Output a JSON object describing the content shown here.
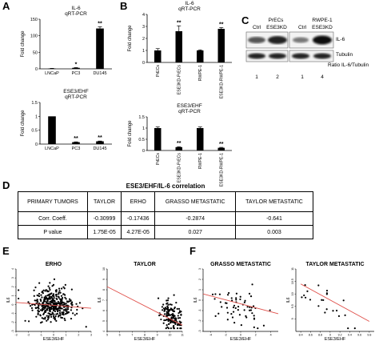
{
  "panels": {
    "A": "A",
    "B": "B",
    "C": "C",
    "D": "D",
    "E": "E",
    "F": "F"
  },
  "chart_data": [
    {
      "id": "a_top",
      "type": "bar",
      "title": "IL-6",
      "subtitle": "qRT-PCR",
      "ylabel": "Fold change",
      "categories": [
        "LNCaP",
        "PC3",
        "DU145"
      ],
      "values": [
        1,
        3,
        122
      ],
      "errors": [
        0.5,
        1,
        5
      ],
      "ylim": [
        0,
        150
      ],
      "yticks": [
        0,
        50,
        100,
        150
      ],
      "signif": [
        "",
        "*",
        "**"
      ]
    },
    {
      "id": "a_bottom",
      "type": "bar",
      "title": "ESE3/EHF",
      "subtitle": "qRT-PCR",
      "ylabel": "Fold change",
      "categories": [
        "LNCaP",
        "PC3",
        "DU145"
      ],
      "values": [
        1.0,
        0.07,
        0.1
      ],
      "errors": [
        0,
        0.01,
        0.01
      ],
      "ylim": [
        0,
        1.5
      ],
      "yticks": [
        0,
        0.5,
        1,
        1.5
      ],
      "signif": [
        "",
        "**",
        "**"
      ]
    },
    {
      "id": "b_top",
      "type": "bar",
      "title": "IL-6",
      "subtitle": "qRT-PCR",
      "ylabel": "Fold change",
      "categories": [
        "PrECs",
        "ESE3KD-PrECs",
        "RWPE-1",
        "ESE3KD-RWPE-1"
      ],
      "values": [
        1.0,
        2.6,
        1.0,
        2.8
      ],
      "errors": [
        0.15,
        0.45,
        0.05,
        0.1
      ],
      "ylim": [
        0,
        4
      ],
      "yticks": [
        0,
        1,
        2,
        3,
        4
      ],
      "signif": [
        "",
        "**",
        "",
        "**"
      ]
    },
    {
      "id": "b_bottom",
      "type": "bar",
      "title": "ESE3/EHF",
      "subtitle": "qRT-PCR",
      "ylabel": "Fold change",
      "categories": [
        "PrECs",
        "ESE3KD-PrECs",
        "RWPE-1",
        "ESE3KD-RWPE-1"
      ],
      "values": [
        1.0,
        0.15,
        1.0,
        0.12
      ],
      "errors": [
        0.05,
        0.02,
        0.05,
        0.02
      ],
      "ylim": [
        0,
        1.5
      ],
      "yticks": [
        0,
        0.5,
        1,
        1.5
      ],
      "signif": [
        "",
        "**",
        "",
        "**"
      ]
    },
    {
      "id": "e_erho",
      "type": "scatter",
      "title": "ERHO",
      "xlabel": "ESE3/EHF",
      "ylabel": "IL6",
      "xlim": [
        -3,
        3
      ],
      "ylim": [
        -3,
        4
      ],
      "xticks": [
        -3,
        -2,
        -1,
        0,
        1,
        2,
        3
      ],
      "yticks": [
        -3,
        -2,
        -1,
        0,
        1,
        2,
        3,
        4
      ],
      "trend": [
        [
          -3,
          0.25
        ],
        [
          3,
          -0.4
        ]
      ]
    },
    {
      "id": "e_taylor",
      "type": "scatter",
      "title": "TAYLOR",
      "xlabel": "ESE3/EHF",
      "ylabel": "IL6",
      "xlim": [
        5,
        11
      ],
      "ylim": [
        4,
        10
      ],
      "xticks": [
        5,
        6,
        7,
        8,
        9,
        10,
        11
      ],
      "yticks": [
        4,
        5,
        6,
        7,
        8,
        9,
        10
      ],
      "trend": [
        [
          5,
          8.3
        ],
        [
          11,
          4.6
        ]
      ]
    },
    {
      "id": "f_grasso",
      "type": "scatter",
      "title": "GRASSO METASTATIC",
      "xlabel": "ESE3/EHF",
      "ylabel": "IL6",
      "xlim": [
        -5,
        5
      ],
      "ylim": [
        -3,
        3
      ],
      "xticks": [
        -4,
        -2,
        0,
        2,
        4
      ],
      "yticks": [
        -3,
        -2,
        -1,
        0,
        1,
        2,
        3
      ],
      "trend": [
        [
          -5,
          0.6
        ],
        [
          5,
          -1.3
        ]
      ]
    },
    {
      "id": "f_taylor_met",
      "type": "scatter",
      "title": "TAYLOR METASTATIC",
      "xlabel": "ESE3/EHF",
      "ylabel": "IL6",
      "xlim": [
        8.3,
        9.9
      ],
      "ylim": [
        8.5,
        11
      ],
      "xticks": [
        8.4,
        8.6,
        8.8,
        9,
        9.2,
        9.4,
        9.6,
        9.8
      ],
      "yticks": [
        9,
        9.5,
        10,
        10.5,
        11
      ],
      "trend": [
        [
          8.4,
          10.4
        ],
        [
          9.8,
          8.9
        ]
      ]
    }
  ],
  "blot": {
    "groups": [
      "PrECs",
      "RWPE-1"
    ],
    "lanes": [
      "Ctrl",
      "ESE3KD",
      "Ctrl",
      "ESE3KD"
    ],
    "rows": [
      "IL-6",
      "Tubulin"
    ],
    "ratio_label": "Ratio IL-6/Tubulin",
    "ratios": [
      "1",
      "2",
      "1",
      "4"
    ]
  },
  "table": {
    "title": "ESE3/EHF/IL-6 correlation",
    "headers": [
      "PRIMARY TUMORS",
      "TAYLOR",
      "ERHO",
      "GRASSO METASTATIC",
      "TAYLOR METASTATIC"
    ],
    "rows": [
      [
        "Corr. Coeff.",
        "-0.30999",
        "-0.17436",
        "-0.2874",
        "-0.641"
      ],
      [
        "P value",
        "1.75E-05",
        "4.27E-05",
        "0.027",
        "0.003"
      ]
    ]
  }
}
